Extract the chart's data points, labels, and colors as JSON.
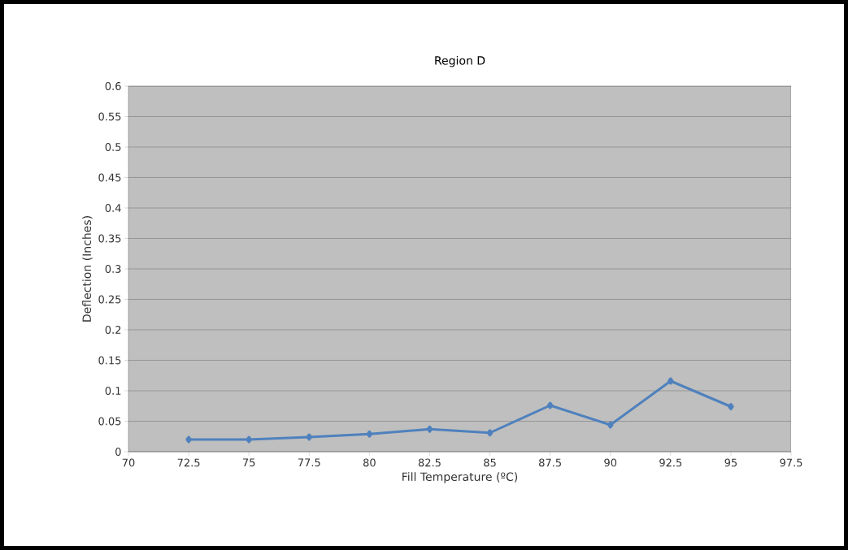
{
  "chart_data": {
    "type": "line",
    "title": "Region D",
    "xlabel": "Fill Temperature (ºC)",
    "ylabel": "Deflection (Inches)",
    "x": [
      72.5,
      75,
      77.5,
      80,
      82.5,
      85,
      87.5,
      90,
      92.5,
      95
    ],
    "series": [
      {
        "color": "#4f81bd",
        "values": [
          0.02,
          0.02,
          0.024,
          0.029,
          0.037,
          0.031,
          0.076,
          0.044,
          0.116,
          0.074
        ]
      }
    ],
    "xlim": [
      70,
      97.5
    ],
    "xticks": [
      70,
      72.5,
      75,
      77.5,
      80,
      82.5,
      85,
      87.5,
      90,
      92.5,
      95,
      97.5
    ],
    "ylim": [
      0,
      0.6
    ],
    "yticks": [
      0,
      0.05,
      0.1,
      0.15,
      0.2,
      0.25,
      0.3,
      0.35,
      0.4,
      0.45,
      0.5,
      0.55,
      0.6
    ],
    "grid": "y",
    "marker": "diamond"
  }
}
